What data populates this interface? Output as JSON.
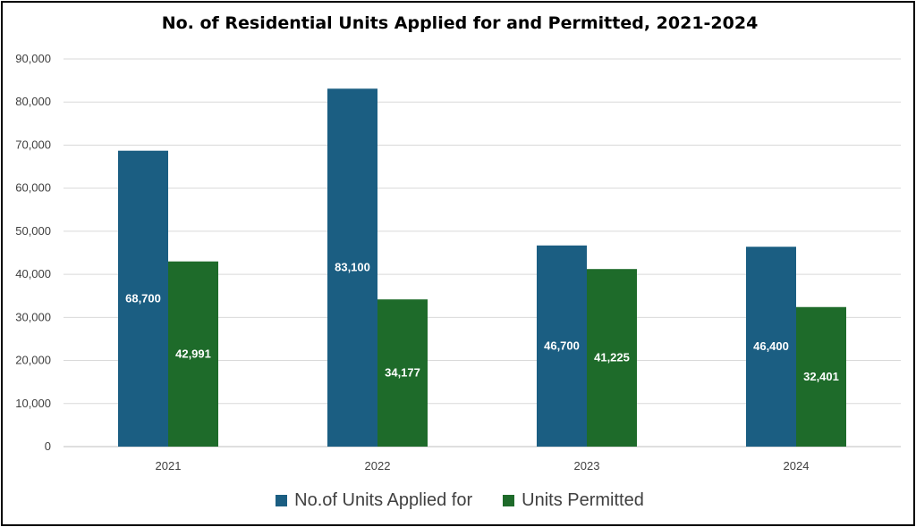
{
  "chart_data": {
    "type": "bar",
    "title": "No. of Residential Units Applied for and Permitted, 2021-2024",
    "xlabel": "",
    "ylabel": "",
    "categories": [
      "2021",
      "2022",
      "2023",
      "2024"
    ],
    "series": [
      {
        "name": "No.of Units Applied for",
        "color": "#1b5e82",
        "values": [
          68700,
          83100,
          46700,
          46400
        ],
        "labels": [
          "68,700",
          "83,100",
          "46,700",
          "46,400"
        ]
      },
      {
        "name": "Units Permitted",
        "color": "#1e6b2a",
        "values": [
          42991,
          34177,
          41225,
          32401
        ],
        "labels": [
          "42,991",
          "34,177",
          "41,225",
          "32,401"
        ]
      }
    ],
    "ylim": [
      0,
      90000
    ],
    "yticks": [
      0,
      10000,
      20000,
      30000,
      40000,
      50000,
      60000,
      70000,
      80000,
      90000
    ],
    "ytick_labels": [
      "0",
      "10,000",
      "20,000",
      "30,000",
      "40,000",
      "50,000",
      "60,000",
      "70,000",
      "80,000",
      "90,000"
    ],
    "grid": true,
    "legend_position": "bottom"
  }
}
